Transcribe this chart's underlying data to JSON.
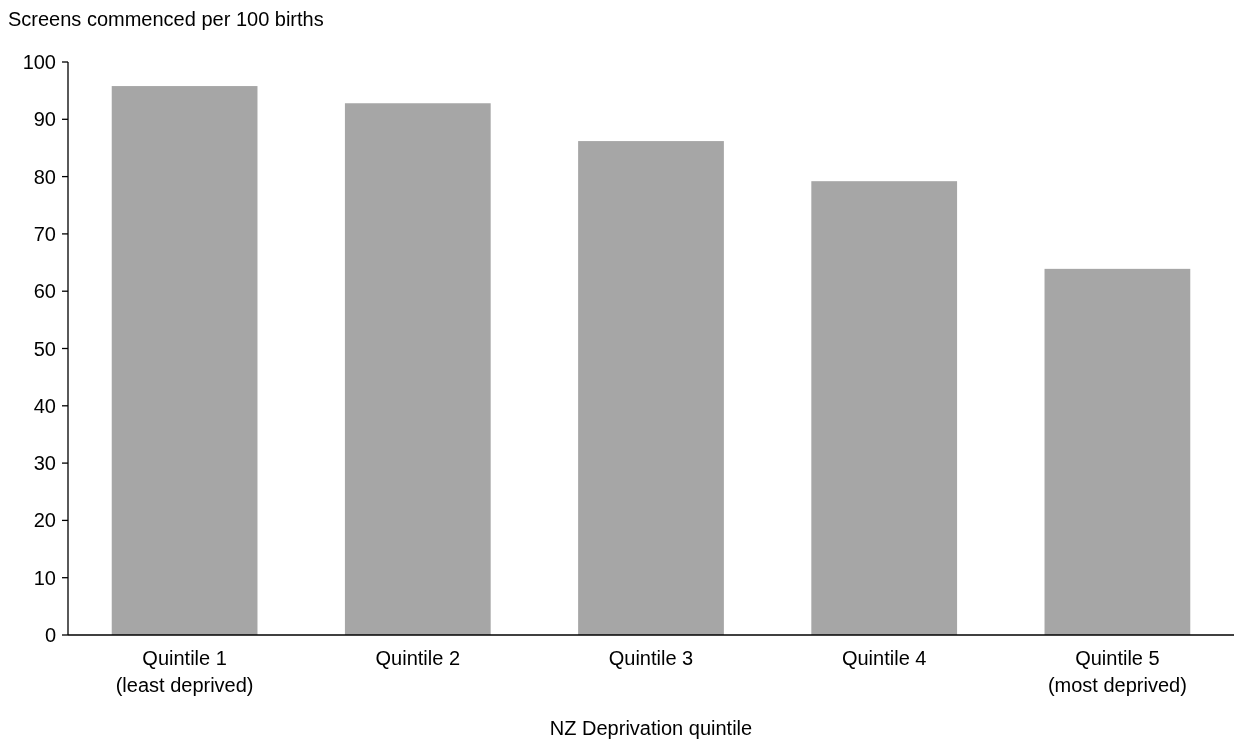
{
  "chart_data": {
    "type": "bar",
    "ylabel": "Screens commenced per 100 births",
    "xlabel": "NZ Deprivation quintile",
    "categories": [
      "Quintile 1\n(least deprived)",
      "Quintile 2",
      "Quintile 3",
      "Quintile 4",
      "Quintile 5\n(most deprived)"
    ],
    "values": [
      95.8,
      92.8,
      86.2,
      79.2,
      63.9
    ],
    "color": "#a6a6a6",
    "ylim": [
      0,
      100
    ],
    "yticks": [
      0,
      10,
      20,
      30,
      40,
      50,
      60,
      70,
      80,
      90,
      100
    ],
    "grid": false
  }
}
